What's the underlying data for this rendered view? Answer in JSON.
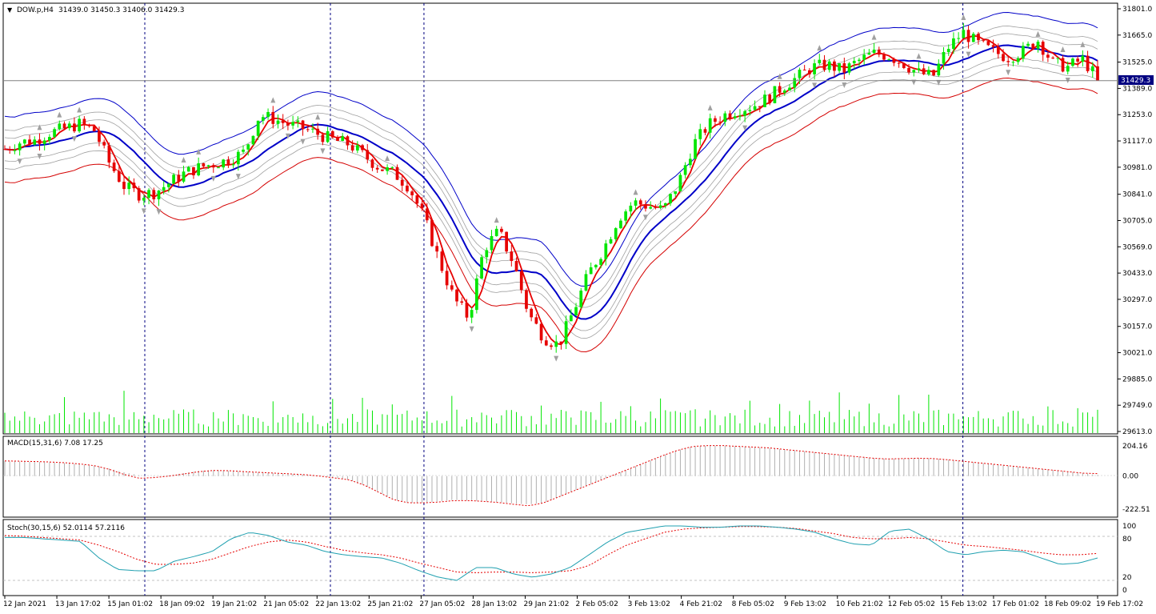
{
  "main_header": {
    "symbol": "DOW.p,H4",
    "ohlc": "31439.0 31450.3 31406.0 31429.3"
  },
  "macd_header": "MACD(15,31,6) 7.08 17.25",
  "stoch_header": "Stoch(30,15,6) 52.0114 57.2116",
  "current_price_tag": "31429.3",
  "colors": {
    "up": "#00e600",
    "down": "#e60000",
    "ma_fast": "#e60000",
    "mid_band": "#0000c8",
    "upper_band": "#0000c8",
    "lower_band": "#d40000",
    "envelope": "#a0a0a0",
    "macd_signal": "#e60000",
    "stoch_main": "#20a0b0",
    "stoch_signal": "#e60000",
    "volume": "#00e600",
    "grid": "#000080"
  },
  "chart_data": [
    {
      "type": "candlestick",
      "panel": "price",
      "y_ticks": [
        "31801.0",
        "31665.0",
        "31525.0",
        "31389.0",
        "31253.0",
        "31117.0",
        "30981.0",
        "30841.0",
        "30705.0",
        "30569.0",
        "30433.0",
        "30297.0",
        "30157.0",
        "30021.0",
        "29885.0",
        "29749.0",
        "29613.0"
      ],
      "ylim": [
        29613,
        31801
      ],
      "x_ticks": [
        "12 Jan 2021",
        "13 Jan 17:02",
        "15 Jan 01:02",
        "18 Jan 09:02",
        "19 Jan 21:02",
        "21 Jan 05:02",
        "22 Jan 13:02",
        "25 Jan 21:02",
        "27 Jan 05:02",
        "28 Jan 13:02",
        "29 Jan 21:02",
        "2 Feb 05:02",
        "3 Feb 13:02",
        "4 Feb 21:02",
        "8 Feb 05:02",
        "9 Feb 13:02",
        "10 Feb 21:02",
        "12 Feb 05:02",
        "15 Feb 13:02",
        "17 Feb 01:02",
        "18 Feb 09:02",
        "19 Feb 17:02"
      ],
      "x_tick_positions": [
        0,
        10,
        20,
        30,
        40,
        50,
        60,
        70,
        80,
        90,
        100,
        110,
        120,
        130,
        140,
        150,
        160,
        170,
        180,
        190,
        200,
        210
      ],
      "period_separators": [
        28,
        64,
        101,
        138,
        175,
        212
      ],
      "close_series": [
        31075,
        31110,
        31120,
        31160,
        31180,
        31205,
        31170,
        31000,
        30880,
        30840,
        30850,
        30900,
        30950,
        30980,
        31000,
        31020,
        31060,
        31250,
        31230,
        31200,
        31180,
        31150,
        31120,
        31100,
        31040,
        30980,
        30950,
        30880,
        30720,
        30500,
        30300,
        30200,
        30560,
        30650,
        30480,
        30220,
        30100,
        30060,
        30240,
        30430,
        30560,
        30720,
        30800,
        30780,
        30760,
        30900,
        31100,
        31200,
        31250,
        31280,
        31300,
        31340,
        31400,
        31450,
        31500,
        31510,
        31480,
        31530,
        31570,
        31560,
        31520,
        31470,
        31450,
        31600,
        31680,
        31620,
        31580,
        31550,
        31580,
        31640,
        31520,
        31500,
        31540,
        31440
      ],
      "current_price": 31429.3
    },
    {
      "type": "histogram_line",
      "panel": "macd",
      "y_ticks": [
        "204.16",
        "0.00",
        "-222.51"
      ],
      "ylim": [
        -260,
        230
      ],
      "histogram_approx": [
        100,
        98,
        96,
        92,
        88,
        80,
        70,
        50,
        25,
        5,
        -5,
        5,
        20,
        35,
        40,
        35,
        30,
        25,
        20,
        15,
        10,
        0,
        -10,
        -25,
        -60,
        -110,
        -160,
        -180,
        -180,
        -170,
        -160,
        -165,
        -170,
        -175,
        -185,
        -190,
        -180,
        -140,
        -100,
        -60,
        -20,
        20,
        60,
        100,
        140,
        175,
        200,
        205,
        205,
        200,
        195,
        190,
        180,
        170,
        160,
        150,
        140,
        130,
        120,
        115,
        118,
        120,
        118,
        110,
        100,
        90,
        80,
        70,
        60,
        50,
        40,
        30,
        20,
        7
      ],
      "signal_approx": [
        102,
        100,
        98,
        95,
        90,
        82,
        70,
        45,
        10,
        -15,
        -10,
        0,
        15,
        30,
        38,
        36,
        30,
        25,
        20,
        15,
        10,
        0,
        -12,
        -25,
        -60,
        -110,
        -160,
        -180,
        -180,
        -175,
        -165,
        -165,
        -170,
        -178,
        -190,
        -200,
        -180,
        -140,
        -100,
        -60,
        -20,
        20,
        60,
        100,
        140,
        175,
        200,
        205,
        205,
        200,
        195,
        190,
        180,
        170,
        160,
        150,
        140,
        130,
        120,
        115,
        118,
        120,
        118,
        110,
        100,
        90,
        80,
        70,
        60,
        50,
        40,
        30,
        20,
        17
      ]
    },
    {
      "type": "line",
      "panel": "stochastic",
      "y_ticks": [
        "100",
        "80",
        "20",
        "0"
      ],
      "ylim": [
        0,
        100
      ],
      "levels": [
        80,
        20
      ],
      "main_approx": [
        82,
        82,
        80,
        78,
        76,
        50,
        32,
        30,
        30,
        45,
        52,
        60,
        80,
        90,
        85,
        75,
        70,
        60,
        55,
        52,
        50,
        42,
        30,
        20,
        15,
        35,
        35,
        25,
        20,
        25,
        35,
        55,
        75,
        90,
        95,
        100,
        100,
        98,
        98,
        100,
        100,
        98,
        95,
        90,
        80,
        72,
        70,
        92,
        95,
        80,
        60,
        55,
        60,
        62,
        60,
        50,
        40,
        42,
        50
      ],
      "signal_approx": [
        85,
        84,
        82,
        80,
        78,
        70,
        60,
        48,
        40,
        40,
        42,
        48,
        58,
        68,
        75,
        78,
        75,
        68,
        62,
        58,
        55,
        50,
        42,
        35,
        28,
        27,
        28,
        28,
        27,
        28,
        30,
        38,
        55,
        70,
        80,
        90,
        95,
        97,
        98,
        99,
        99,
        98,
        96,
        92,
        88,
        82,
        80,
        80,
        82,
        80,
        75,
        70,
        68,
        65,
        62,
        58,
        55,
        55,
        57
      ]
    }
  ]
}
